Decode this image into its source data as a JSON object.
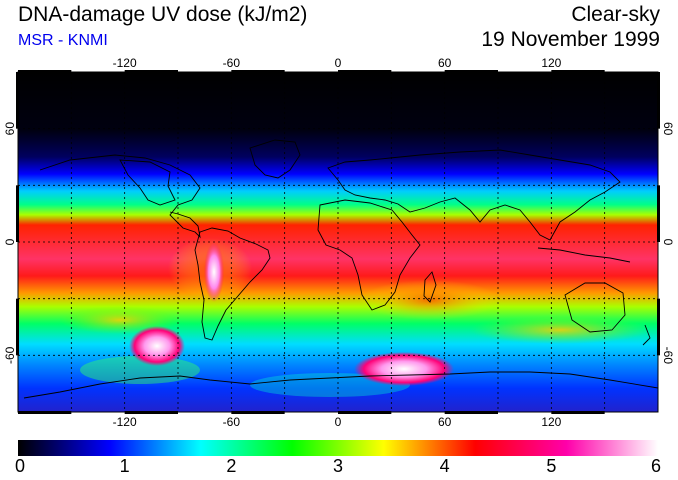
{
  "header": {
    "title": "DNA-damage UV dose (kJ/m2)",
    "source": "MSR - KNMI",
    "sky_condition": "Clear-sky",
    "date": "19 November 1999"
  },
  "map": {
    "lon_ticks_top": [
      "-120",
      "-60",
      "0",
      "60",
      "120"
    ],
    "lon_ticks_bottom": [
      "-120",
      "-60",
      "0",
      "60",
      "120"
    ],
    "lat_ticks_left": [
      "60",
      "0",
      "-60"
    ],
    "lat_ticks_right": [
      "60",
      "0",
      "-60"
    ],
    "graticule": "dashed",
    "lon_range": [
      -180,
      180
    ],
    "lat_range": [
      -90,
      90
    ]
  },
  "colorbar": {
    "labels": [
      "0",
      "1",
      "2",
      "3",
      "4",
      "5",
      "6"
    ],
    "range": [
      0,
      6
    ],
    "colors": [
      "#000000",
      "#0000ff",
      "#00ffff",
      "#00ff00",
      "#ffff00",
      "#ff0000",
      "#ff00aa",
      "#ffffff"
    ]
  }
}
